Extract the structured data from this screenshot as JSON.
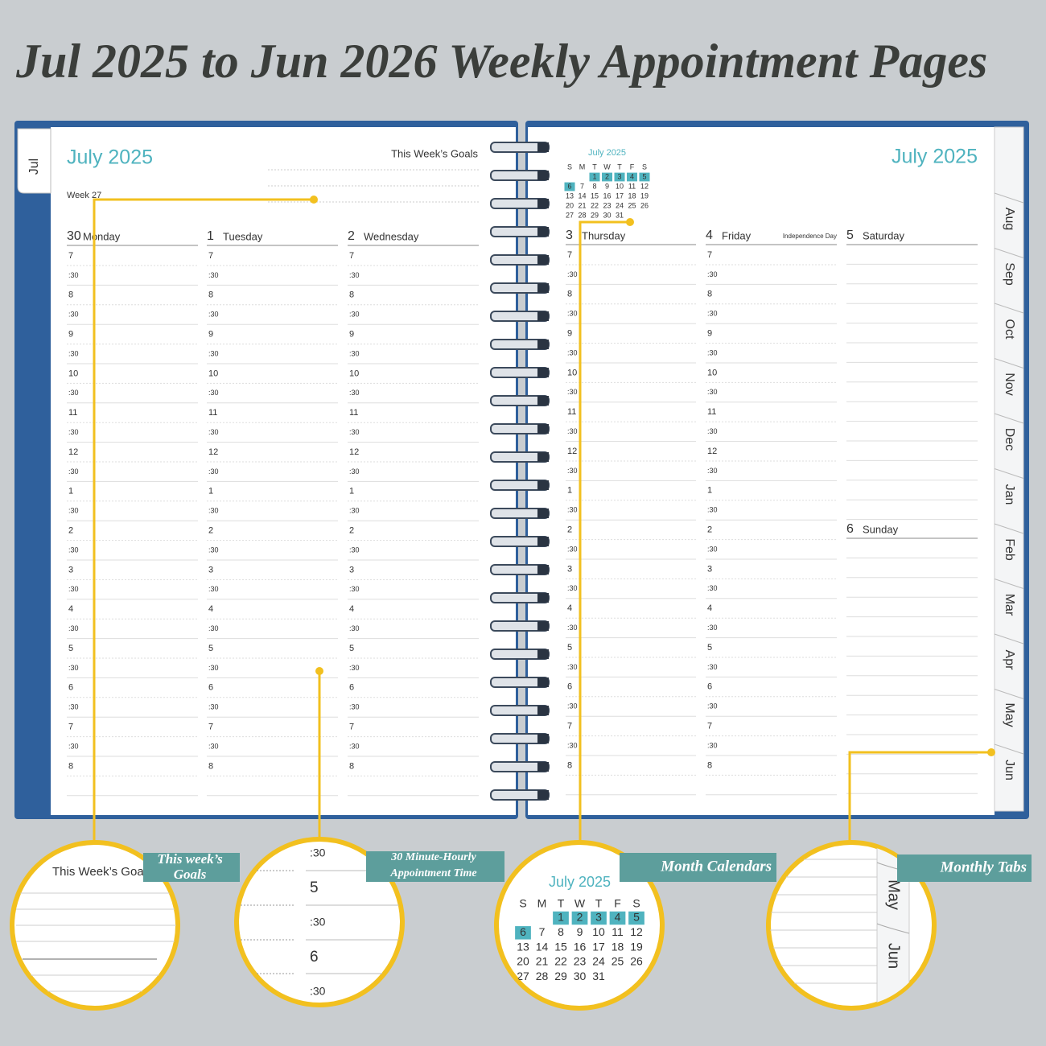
{
  "title": "Jul 2025 to Jun 2026 Weekly Appointment Pages",
  "left_page": {
    "tab": "Jul",
    "month": "July 2025",
    "goals_label": "This Week’s Goals",
    "week": "Week 27",
    "days": [
      {
        "number": "30",
        "name": "Monday"
      },
      {
        "number": "1",
        "name": "Tuesday"
      },
      {
        "number": "2",
        "name": "Wednesday"
      }
    ]
  },
  "times": [
    "7",
    ":30",
    "8",
    ":30",
    "9",
    ":30",
    "10",
    ":30",
    "11",
    ":30",
    "12",
    ":30",
    "1",
    ":30",
    "2",
    ":30",
    "3",
    ":30",
    "4",
    ":30",
    "5",
    ":30",
    "6",
    ":30",
    "7",
    ":30",
    "8"
  ],
  "right_page": {
    "month": "July 2025",
    "mini_calendar": {
      "title": "July 2025",
      "weekdays": [
        "S",
        "M",
        "T",
        "W",
        "T",
        "F",
        "S"
      ],
      "weeks": [
        [
          null,
          null,
          1,
          2,
          3,
          4,
          5
        ],
        [
          6,
          7,
          8,
          9,
          10,
          11,
          12
        ],
        [
          13,
          14,
          15,
          16,
          17,
          18,
          19
        ],
        [
          20,
          21,
          22,
          23,
          24,
          25,
          26
        ],
        [
          27,
          28,
          29,
          30,
          31,
          null,
          null
        ]
      ],
      "highlighted": [
        1,
        2,
        3,
        4,
        5,
        6
      ]
    },
    "days": [
      {
        "number": "3",
        "name": "Thursday"
      },
      {
        "number": "4",
        "name": "Friday",
        "note": "Independence Day"
      },
      {
        "number": "5",
        "name": "Saturday"
      },
      {
        "number": "6",
        "name": "Sunday"
      }
    ],
    "tabs": [
      "Aug",
      "Sep",
      "Oct",
      "Nov",
      "Dec",
      "Jan",
      "Feb",
      "Mar",
      "Apr",
      "May",
      "Jun"
    ]
  },
  "callouts": [
    {
      "label": "This week’s Goals"
    },
    {
      "label": "30 Minute-Hourly Appointment Time"
    },
    {
      "label": "Month Calendars"
    },
    {
      "label": "Monthly Tabs"
    }
  ]
}
